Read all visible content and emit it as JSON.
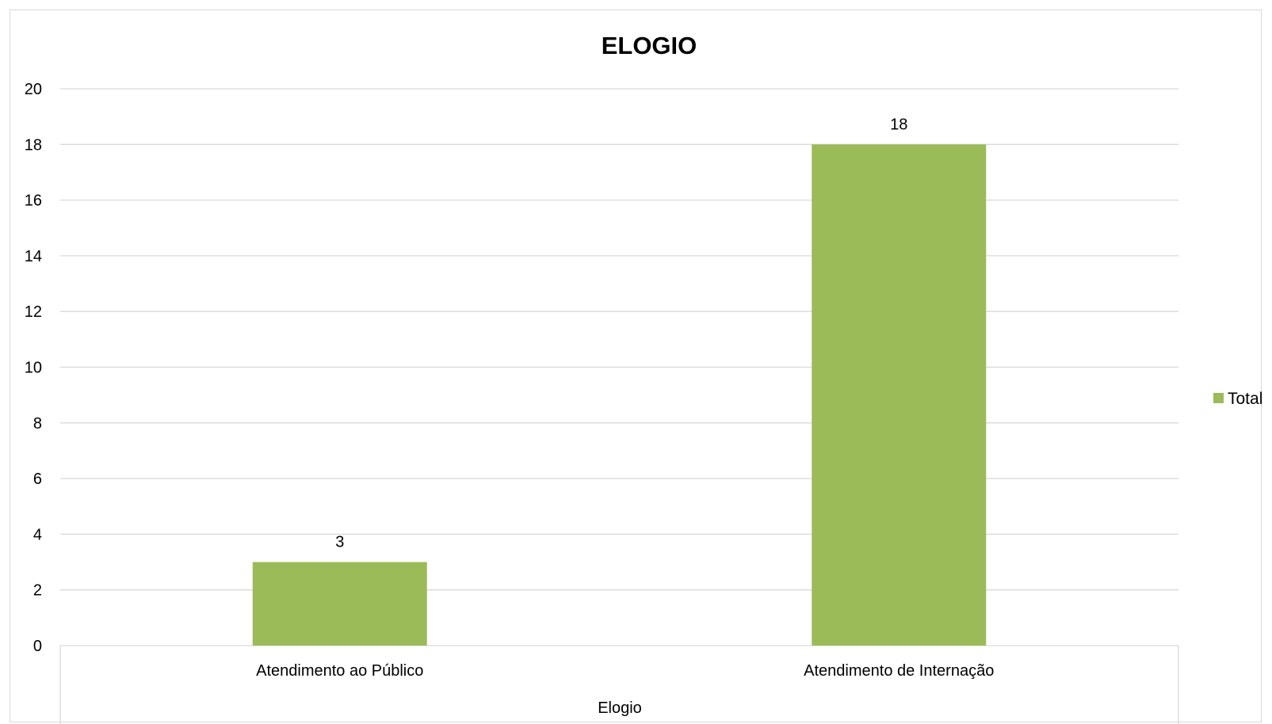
{
  "chart_data": {
    "type": "bar",
    "title": "ELOGIO",
    "categories": [
      "Atendimento ao Público",
      "Atendimento de Internação"
    ],
    "series": [
      {
        "name": "Total",
        "values": [
          3,
          18
        ],
        "color": "#9BBB59"
      }
    ],
    "data_labels": [
      "3",
      "18"
    ],
    "xlabel": "Elogio",
    "ylabel": "",
    "ylim": [
      0,
      20
    ],
    "yticks": [
      0,
      2,
      4,
      6,
      8,
      10,
      12,
      14,
      16,
      18,
      20
    ],
    "grid": true,
    "gridline_color": "#d9d9d9",
    "legend_position": "right"
  }
}
